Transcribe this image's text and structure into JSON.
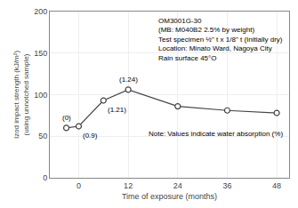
{
  "chart_data": {
    "type": "line",
    "x": [
      -3,
      0,
      6,
      12,
      24,
      36,
      48
    ],
    "values": [
      60,
      62,
      93,
      106,
      86,
      81,
      78
    ],
    "color": "#444444",
    "marker": "circle-open",
    "xlabel": "Time of exposure (months)",
    "ylabel": [
      "Izod impact strength (kJ/m²)",
      "(using unnotched sample)"
    ],
    "xlim": [
      -7,
      51
    ],
    "ylim": [
      0,
      200
    ],
    "xticks": [
      0,
      12,
      24,
      36,
      48
    ],
    "yticks": [
      0,
      50,
      100,
      150,
      200
    ],
    "grid": true,
    "annotations": [
      {
        "x": -3,
        "y": 60,
        "text": "(0)"
      },
      {
        "x": 0,
        "y": 62,
        "text": "(0.9)"
      },
      {
        "x": 6,
        "y": 93,
        "text": "(1.21)"
      },
      {
        "x": 12,
        "y": 106,
        "text": "(1.24)"
      },
      {
        "text": "Note: Values indicate water absorption (%)"
      },
      {
        "text": [
          "OM3001G-30",
          "(MB: M040B2 2.5% by weight)",
          "Test specimen ½\" t x 1/8\" t (Initially dry)",
          "Location: Minato Ward, Nagoya City",
          "Rain surface 45°O"
        ]
      }
    ]
  }
}
